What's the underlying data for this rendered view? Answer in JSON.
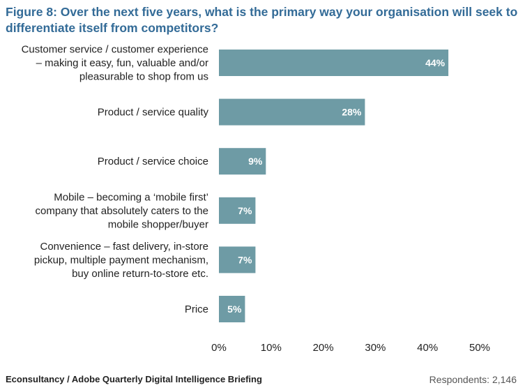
{
  "figure": {
    "title": "Figure 8: Over the next five years, what is the primary way your organisation will seek to differentiate itself from competitors?",
    "source": "Econsultancy / Adobe Quarterly Digital Intelligence Briefing",
    "respondents": "Respondents: 2,146"
  },
  "chart_data": {
    "type": "bar",
    "orientation": "horizontal",
    "categories": [
      [
        "Customer service / customer experience",
        "– making it easy, fun, valuable and/or",
        "pleasurable to shop from us"
      ],
      [
        "Product / service quality"
      ],
      [
        "Product / service choice"
      ],
      [
        "Mobile – becoming a ‘mobile first’",
        "company that absolutely caters to the",
        "mobile shopper/buyer"
      ],
      [
        "Convenience – fast delivery, in-store",
        "pickup, multiple payment mechanism,",
        "buy online return-to-store etc."
      ],
      [
        "Price"
      ]
    ],
    "values": [
      44,
      28,
      9,
      7,
      7,
      5
    ],
    "data_labels": [
      "44%",
      "28%",
      "9%",
      "7%",
      "7%",
      "5%"
    ],
    "xticks": [
      0,
      10,
      20,
      30,
      40,
      50
    ],
    "xtick_labels": [
      "0%",
      "10%",
      "20%",
      "30%",
      "40%",
      "50%"
    ],
    "xlim": [
      0,
      50
    ],
    "bar_color": "#6e9ba5",
    "label_color": "#ffffff",
    "grid": false,
    "legend": "none"
  }
}
